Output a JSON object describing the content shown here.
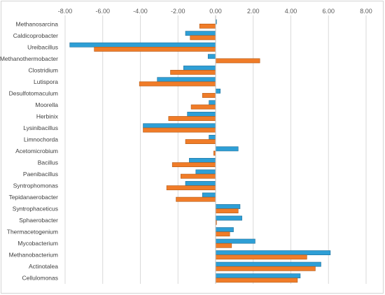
{
  "chart_data": {
    "type": "bar",
    "orientation": "horizontal",
    "xlim": [
      -8,
      8
    ],
    "x_ticks": [
      -8,
      -6,
      -4,
      -2,
      0,
      2,
      4,
      6,
      8
    ],
    "x_tick_labels": [
      "-8.00",
      "-6.00",
      "-4.00",
      "-2.00",
      "0.00",
      "2.00",
      "4.00",
      "6.00",
      "8.00"
    ],
    "grid": "vertical",
    "legend": "none",
    "categories": [
      "Methanosarcina",
      "Caldicoprobacter",
      "Ureibacillus",
      "Methanothermobacter",
      "Clostridium",
      "Lutispora",
      "Desulfotomaculum",
      "Moorella",
      "Herbinix",
      "Lysinibacillus",
      "Limnochorda",
      "Acetomicrobium",
      "Bacillus",
      "Paenibacillus",
      "Syntrophomonas",
      "Tepidanaerobacter",
      "Syntrophaceticus",
      "Sphaerobacter",
      "Thermacetogenium",
      "Mycobacterium",
      "Methanobacterium",
      "Actinotalea",
      "Cellulomonas"
    ],
    "series": [
      {
        "color": "#2e9fd6",
        "values": [
          0.05,
          -1.6,
          -7.75,
          -0.4,
          -1.7,
          -3.1,
          0.25,
          -0.35,
          -1.5,
          -3.85,
          -0.35,
          1.2,
          -1.4,
          -1.05,
          -1.6,
          -0.7,
          1.3,
          1.4,
          0.95,
          2.1,
          6.1,
          5.6,
          4.5
        ]
      },
      {
        "color": "#f07c28",
        "values": [
          -0.85,
          -1.35,
          -6.45,
          2.35,
          -2.4,
          -4.05,
          -0.7,
          -1.3,
          -2.5,
          -3.85,
          -1.6,
          -0.1,
          -2.3,
          -1.85,
          -2.6,
          -2.1,
          1.2,
          0.05,
          0.75,
          0.85,
          4.85,
          5.3,
          4.35
        ]
      }
    ]
  }
}
